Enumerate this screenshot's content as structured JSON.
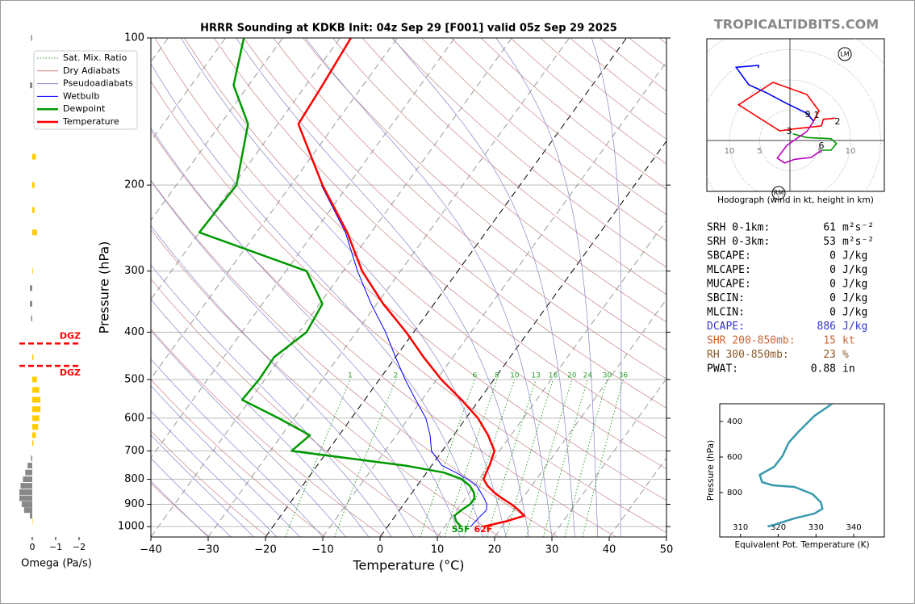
{
  "watermark": "TROPICALTIDBITS.COM",
  "chart_data": [
    {
      "type": "skewt",
      "title": "HRRR Sounding at KDKB Init: 04z Sep 29 [F001] valid 05z Sep 29 2025",
      "xlabel": "Temperature (°C)",
      "ylabel": "Pressure (hPa)",
      "xlim": [
        -40,
        50
      ],
      "ylim": [
        1050,
        100
      ],
      "log_y": true,
      "xticks": [
        {
          "value": -40,
          "label": "−40"
        },
        {
          "value": -30,
          "label": "−30"
        },
        {
          "value": -20,
          "label": "−20"
        },
        {
          "value": -10,
          "label": "−10"
        },
        0,
        10,
        20,
        30,
        40,
        50
      ],
      "yticks": [
        100,
        200,
        300,
        400,
        500,
        600,
        700,
        800,
        900,
        1000
      ],
      "isotherm_highlight": [
        -20,
        0
      ],
      "legend": "upper left",
      "background_lines": [
        {
          "name": "Sat. Mix. Ratio",
          "color": "#2ca02c"
        },
        {
          "name": "Dry Adiabats",
          "color": "#c98585"
        },
        {
          "name": "Pseudoadiabats",
          "color": "#8585c9"
        }
      ],
      "mixing_ratio_labels": [
        1,
        2,
        6,
        8,
        10,
        13,
        16,
        20,
        24,
        30,
        36
      ],
      "y": [
        1000,
        975,
        950,
        925,
        900,
        875,
        850,
        825,
        800,
        775,
        750,
        700,
        650,
        600,
        550,
        500,
        450,
        400,
        350,
        300,
        250,
        200,
        150,
        125,
        100
      ],
      "series": [
        {
          "name": "Wetbulb",
          "color": "#0000ff",
          "width": 1,
          "values": [
            14.5,
            14.7,
            14.9,
            15.2,
            14.5,
            13.3,
            11.9,
            10.4,
            8.0,
            5.1,
            1.8,
            -1.9,
            -4.1,
            -7.0,
            -11.1,
            -15.5,
            -20.0,
            -24.9,
            -31.0,
            -37.5,
            -44.5,
            -54.7,
            null,
            null,
            null
          ]
        },
        {
          "name": "Dewpoint",
          "color": "#009900",
          "width": 2.5,
          "surface_label": "55F",
          "values": [
            12.8,
            11.3,
            10.3,
            10.8,
            11.6,
            11.6,
            10.7,
            9.2,
            7.0,
            3.0,
            -4.6,
            -26.3,
            -25.1,
            -32.7,
            -41.4,
            -41.0,
            -41.2,
            -38.7,
            -39.5,
            -46.4,
            -70.0,
            -69.5,
            -75.2,
            -82.6,
            -86.8
          ]
        },
        {
          "name": "Temperature",
          "color": "#ff0000",
          "width": 2.5,
          "surface_label": "62F",
          "values": [
            16.7,
            20.1,
            22.5,
            20.8,
            18.8,
            16.4,
            14.2,
            12.3,
            10.8,
            10.4,
            10.1,
            9.1,
            6.0,
            2.1,
            -3.1,
            -9.2,
            -15.1,
            -21.3,
            -28.9,
            -36.7,
            -44.2,
            -54.5,
            -66.4,
            -67.1,
            -68.1
          ]
        }
      ]
    },
    {
      "type": "bar",
      "xlabel": "Omega (Pa/s)",
      "xlim": [
        0.62,
        -2.07
      ],
      "ylim": [
        1050,
        100
      ],
      "log_y": true,
      "xticks": [
        0,
        {
          "value": -1,
          "label": "−1"
        },
        {
          "value": -2,
          "label": "−2"
        }
      ],
      "positive_color": "#888888",
      "negative_color": "#ffcc00",
      "y": [
        100,
        125,
        175,
        200,
        225,
        250,
        300,
        325,
        350,
        375,
        450,
        500,
        525,
        550,
        575,
        600,
        625,
        650,
        675,
        725,
        750,
        775,
        800,
        825,
        850,
        875,
        900,
        925,
        950,
        975
      ],
      "values": [
        0.05,
        0.1,
        -0.15,
        -0.1,
        -0.1,
        -0.2,
        -0.03,
        0.1,
        0.1,
        0.05,
        -0.05,
        -0.2,
        -0.3,
        -0.35,
        -0.35,
        -0.3,
        -0.25,
        -0.15,
        -0.05,
        0.05,
        0.2,
        0.3,
        0.4,
        0.5,
        0.55,
        0.55,
        0.45,
        0.35,
        0.1,
        -0.02
      ],
      "dgz": {
        "label": "DGZ",
        "color": "#ff0000",
        "pressures": [
          422,
          469
        ]
      }
    },
    {
      "type": "hodograph",
      "title": "Hodograph (wind in kt, height in km)",
      "rings": [
        5,
        10,
        15,
        20,
        25
      ],
      "ring_ticks": [
        5,
        10
      ],
      "height_labels": [
        9,
        1,
        2,
        3,
        6
      ],
      "storm_motion": [
        "LM",
        "RM"
      ],
      "series": [
        {
          "color": "#ff0000",
          "u": [
            7.5,
            5.5,
            5.2,
            0.5,
            -1.7,
            -8.5,
            -2.8,
            2.8,
            4.8,
            3.9
          ],
          "v": [
            3.7,
            3.5,
            2.4,
            1.9,
            1.6,
            5.9,
            9.6,
            7.6,
            4.9,
            3.2
          ]
        },
        {
          "color": "#009900",
          "u": [
            0.5,
            2.8,
            6.8,
            7.7,
            6.8,
            5.2
          ],
          "v": [
            1.1,
            0.5,
            0.3,
            -0.5,
            -1.6,
            -1.6
          ]
        },
        {
          "color": "#bb00bb",
          "u": [
            5.2,
            3.5,
            0.8,
            -0.9,
            -2.1,
            -0.5,
            2.8,
            3.9
          ],
          "v": [
            -1.6,
            -2.8,
            -3.1,
            -3.7,
            -2.9,
            -0.8,
            1.5,
            3.2
          ]
        },
        {
          "color": "#0000ff",
          "u": [
            3.9,
            2.8,
            -0.5,
            -3.9,
            -6.8,
            -8.9,
            -5.2,
            -5.2
          ],
          "v": [
            3.2,
            4.5,
            6.1,
            7.9,
            9.2,
            12.1,
            12.4,
            12.0
          ]
        }
      ]
    },
    {
      "type": "line",
      "xlabel": "Equivalent Pot. Temperature (K)",
      "ylabel": "Pressure (hPa)",
      "xlim": [
        304.5,
        348.1
      ],
      "ylim": [
        1050,
        300
      ],
      "xticks": [
        310,
        320,
        330,
        340
      ],
      "yticks": [
        400,
        600,
        800
      ],
      "color": "#3a99ad",
      "x": [
        334.3,
        329.6,
        325.3,
        322.8,
        321.1,
        318.9,
        315.1,
        315.7,
        318.5,
        324.3,
        329.1,
        331.3,
        331.7,
        329.6,
        324.3,
        318.9,
        317.2
      ],
      "y": [
        300,
        368,
        459,
        518,
        595,
        655,
        700,
        741,
        759,
        768,
        809,
        855,
        891,
        918,
        945,
        982,
        991
      ]
    }
  ],
  "stats": {
    "rows": [
      {
        "label": "SRH 0-1km:",
        "value": 61,
        "unit": "m²s⁻²",
        "color": "#000000"
      },
      {
        "label": "SRH 0-3km:",
        "value": 53,
        "unit": "m²s⁻²",
        "color": "#000000"
      },
      {
        "label": "SBCAPE:",
        "value": 0,
        "unit": "J/kg",
        "color": "#000000"
      },
      {
        "label": "MLCAPE:",
        "value": 0,
        "unit": "J/kg",
        "color": "#000000"
      },
      {
        "label": "MUCAPE:",
        "value": 0,
        "unit": "J/kg",
        "color": "#000000"
      },
      {
        "label": "SBCIN:",
        "value": 0,
        "unit": "J/kg",
        "color": "#000000"
      },
      {
        "label": "MLCIN:",
        "value": 0,
        "unit": "J/kg",
        "color": "#000000"
      },
      {
        "label": "DCAPE:",
        "value": 886,
        "unit": "J/kg",
        "color": "#3333cc"
      },
      {
        "label": "SHR 200-850mb:",
        "value": 15,
        "unit": "kt",
        "color": "#cc6633"
      },
      {
        "label": "RH 300-850mb:",
        "value": 23,
        "unit": "%",
        "color": "#8b5a2b"
      },
      {
        "label": "PWAT:",
        "value": 0.88,
        "unit": "in",
        "color": "#000000"
      }
    ]
  }
}
